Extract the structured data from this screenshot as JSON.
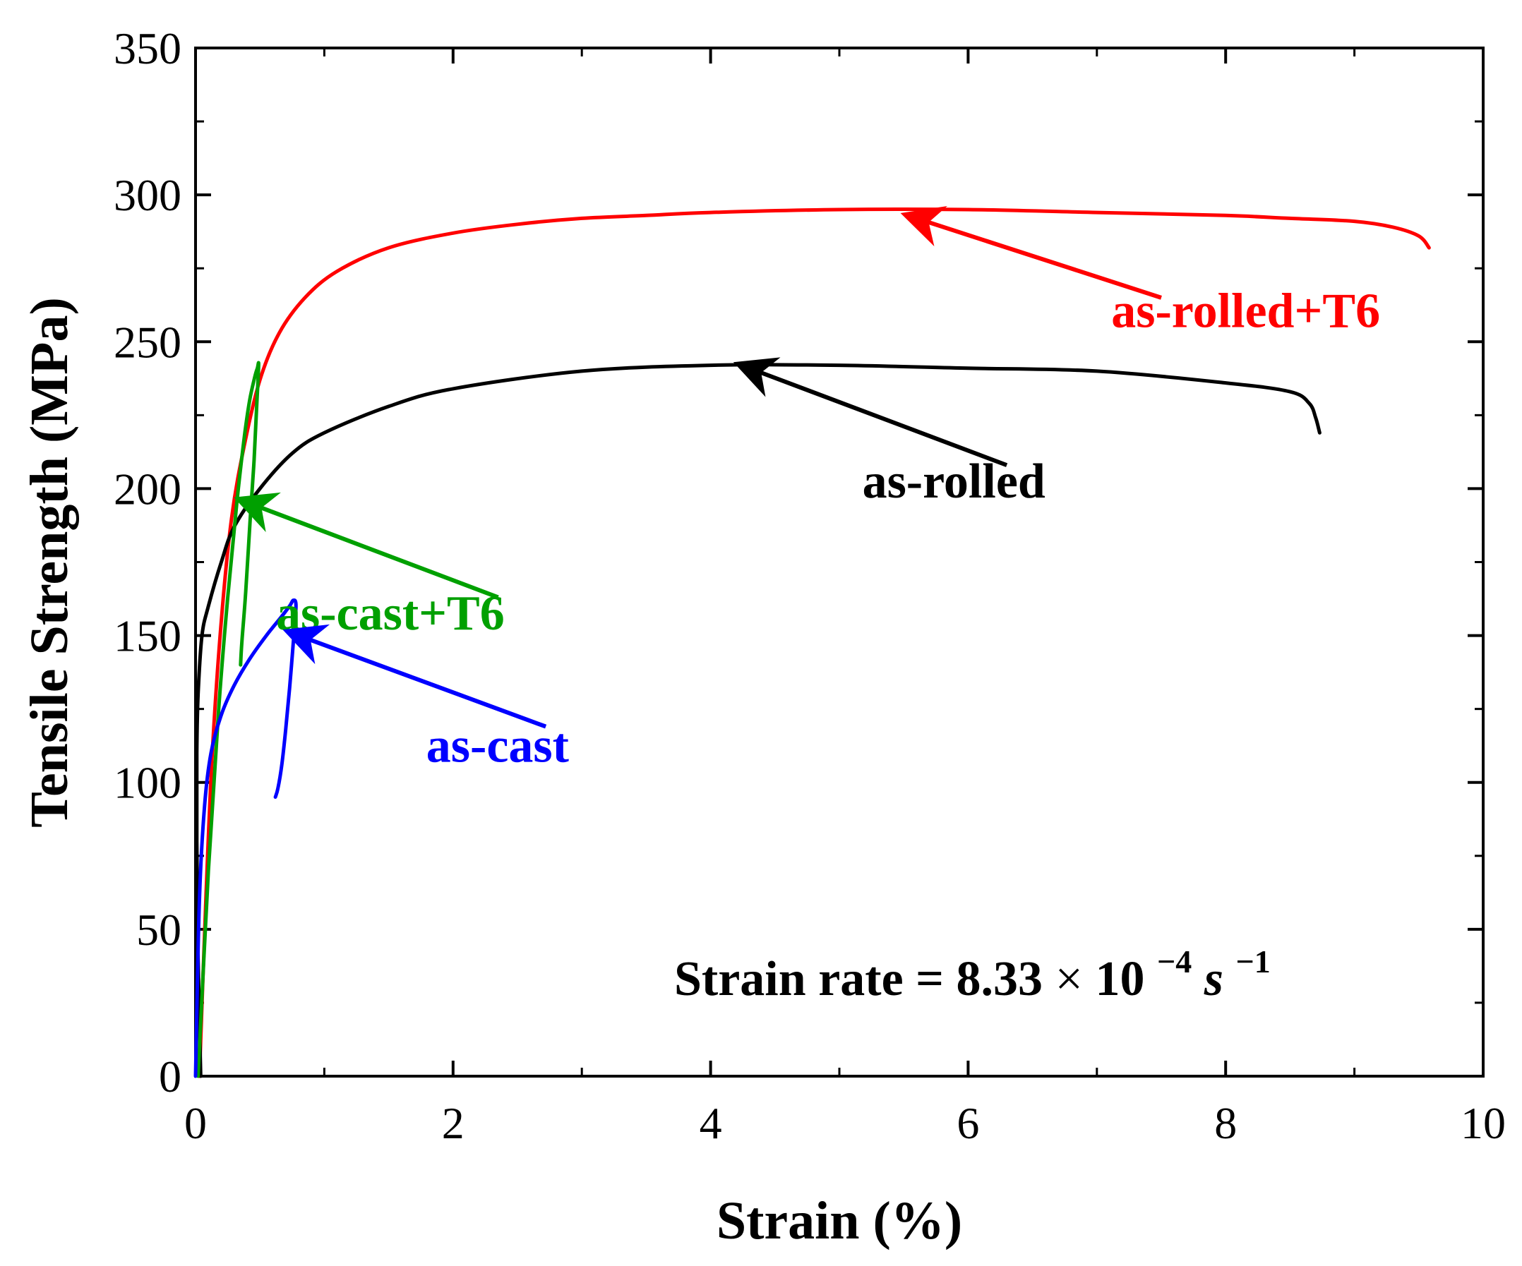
{
  "chart_data": {
    "type": "line",
    "title": "",
    "xlabel": "Strain (%)",
    "ylabel": "Tensile Strength (MPa)",
    "xlim": [
      0,
      10
    ],
    "ylim": [
      0,
      350
    ],
    "x_ticks": [
      0,
      2,
      4,
      6,
      8,
      10
    ],
    "y_ticks": [
      0,
      50,
      100,
      150,
      200,
      250,
      300,
      350
    ],
    "grid": false,
    "legend": "none",
    "annotation": {
      "text_main": "Strain rate = 8.33",
      "text_times": "×",
      "text_base": "10",
      "text_exp1": "−4",
      "text_s": "s",
      "text_exp2": "−1"
    },
    "series": [
      {
        "name": "as-rolled+T6",
        "color": "#ff0000",
        "x": [
          0.03,
          0.08,
          0.13,
          0.2,
          0.28,
          0.38,
          0.5,
          0.65,
          0.85,
          1.1,
          1.5,
          2.0,
          2.5,
          3.0,
          3.5,
          4.0,
          5.0,
          6.0,
          7.0,
          8.0,
          8.5,
          9.0,
          9.3,
          9.5,
          9.58
        ],
        "values": [
          0,
          60,
          110,
          155,
          190,
          215,
          237,
          253,
          265,
          274,
          282,
          287,
          290,
          292,
          293,
          294,
          295,
          295,
          294,
          293,
          292,
          291,
          289,
          286,
          282
        ],
        "label_pos": [
          9.2,
          255
        ],
        "arrow_from": [
          7.5,
          265
        ],
        "arrow_to": [
          5.6,
          292
        ]
      },
      {
        "name": "as-rolled",
        "color": "#000000",
        "x": [
          0.04,
          0.02,
          0.01,
          0.01,
          0.02,
          0.05,
          0.1,
          0.2,
          0.3,
          0.5,
          0.75,
          1.0,
          1.5,
          2.0,
          3.0,
          4.0,
          5.0,
          6.0,
          7.0,
          8.0,
          8.5,
          8.65,
          8.7,
          8.73
        ],
        "values": [
          0,
          40,
          80,
          110,
          130,
          150,
          160,
          175,
          187,
          200,
          212,
          219,
          228,
          234,
          240,
          242,
          242,
          241,
          240,
          236,
          233,
          229,
          224,
          219
        ],
        "label_pos": [
          6.6,
          197
        ],
        "arrow_from": [
          6.3,
          208
        ],
        "arrow_to": [
          4.3,
          241
        ]
      },
      {
        "name": "as-cast+T6",
        "color": "#00a000",
        "x": [
          0.02,
          0.1,
          0.18,
          0.25,
          0.32,
          0.38,
          0.42,
          0.46,
          0.48,
          0.49,
          0.475,
          0.455,
          0.425,
          0.39,
          0.36,
          0.35
        ],
        "values": [
          0,
          70,
          125,
          163,
          195,
          218,
          230,
          238,
          241,
          242,
          228,
          210,
          190,
          165,
          148,
          140
        ],
        "label_pos": [
          2.4,
          152
        ],
        "arrow_from": [
          2.35,
          163
        ],
        "arrow_to": [
          0.42,
          195
        ]
      },
      {
        "name": "as-cast",
        "color": "#0000ff",
        "x": [
          0.0,
          0.03,
          0.07,
          0.12,
          0.2,
          0.3,
          0.42,
          0.55,
          0.66,
          0.73,
          0.76,
          0.78,
          0.76,
          0.73,
          0.7,
          0.67,
          0.64,
          0.62
        ],
        "values": [
          0,
          60,
          92,
          110,
          123,
          133,
          142,
          150,
          156,
          160,
          162,
          160,
          148,
          132,
          118,
          106,
          98,
          95
        ],
        "label_pos": [
          2.9,
          107
        ],
        "arrow_from": [
          2.72,
          119
        ],
        "arrow_to": [
          0.8,
          150
        ]
      }
    ]
  }
}
